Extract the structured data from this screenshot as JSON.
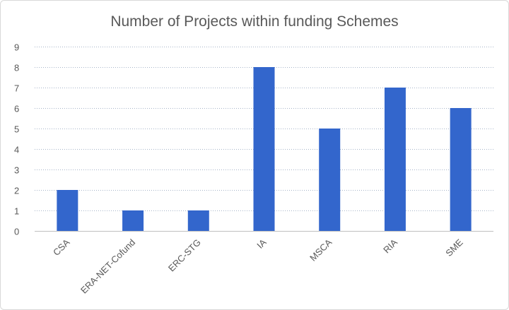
{
  "chart_data": {
    "type": "bar",
    "title": "Number of Projects within funding Schemes",
    "xlabel": "",
    "ylabel": "",
    "categories": [
      "CSA",
      "ERA-NET-Cofund",
      "ERC-STG",
      "IA",
      "MSCA",
      "RIA",
      "SME"
    ],
    "series": [
      {
        "values": [
          2,
          1,
          1,
          8,
          5,
          7,
          6
        ],
        "color": "#3366cc"
      }
    ],
    "ylim": [
      0,
      9
    ],
    "yticks": [
      "0",
      "1",
      "2",
      "3",
      "4",
      "5",
      "6",
      "7",
      "8",
      "9"
    ],
    "grid": true,
    "legend": "none"
  }
}
